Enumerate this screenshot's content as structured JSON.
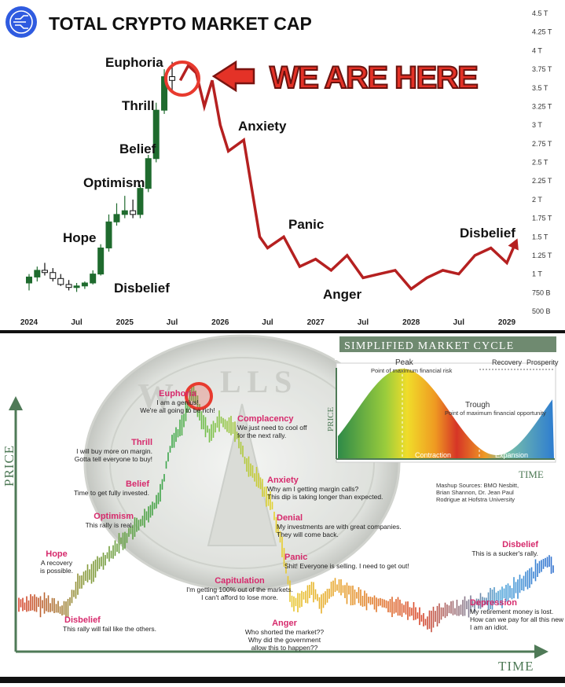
{
  "top_chart": {
    "title": "TOTAL CRYPTO MARKET CAP",
    "banner": "WE ARE HERE",
    "y_ticks": [
      "4.5 T",
      "4.25 T",
      "4 T",
      "3.75 T",
      "3.5 T",
      "3.25 T",
      "3 T",
      "2.75 T",
      "2.5 T",
      "2.25 T",
      "2 T",
      "1.75 T",
      "1.5 T",
      "1.25 T",
      "1 T",
      "750 B",
      "500 B"
    ],
    "x_ticks": [
      "2024",
      "Jul",
      "2025",
      "Jul",
      "2026",
      "Jul",
      "2027",
      "Jul",
      "2028",
      "Jul",
      "2029"
    ],
    "phase_labels": [
      "Euphoria",
      "Thrill",
      "Belief",
      "Optimism",
      "Hope",
      "Disbelief",
      "Anxiety",
      "Panic",
      "Anger",
      "Disbelief"
    ],
    "colors": {
      "projection": "#b52020",
      "highlight": "#e83a2e",
      "candle_up": "#1f6b2e",
      "candle_down": "#111111",
      "logo": "#2f5be0"
    }
  },
  "chart_data": [
    {
      "type": "line",
      "title": "TOTAL CRYPTO MARKET CAP",
      "xlabel": "",
      "ylabel": "",
      "ylim": [
        500000000000,
        4500000000000
      ],
      "x": [
        "2025-08",
        "2025-09",
        "2025-10",
        "2025-11",
        "2025-12",
        "2026-01",
        "2026-02",
        "2026-04",
        "2026-06",
        "2026-07",
        "2026-09",
        "2026-11",
        "2027-01",
        "2027-03",
        "2027-05",
        "2027-07",
        "2027-09",
        "2027-11",
        "2028-01",
        "2028-03",
        "2028-05",
        "2028-07",
        "2028-09",
        "2028-11",
        "2029-01",
        "2029-02"
      ],
      "series": [
        {
          "values": [
            3600000000000,
            3800000000000,
            3700000000000,
            3250000000000,
            3600000000000,
            3000000000000,
            2650000000000,
            2800000000000,
            1500000000000,
            1350000000000,
            1500000000000,
            1100000000000,
            1200000000000,
            1050000000000,
            1250000000000,
            950000000000,
            1000000000000,
            1050000000000,
            800000000000,
            950000000000,
            1050000000000,
            1000000000000,
            1250000000000,
            1350000000000,
            1150000000000,
            1400000000000
          ]
        }
      ],
      "candles": [
        {
          "x": "2024-01",
          "o": 880000000000,
          "h": 1000000000000,
          "l": 780000000000,
          "c": 960000000000
        },
        {
          "x": "2024-02",
          "o": 960000000000,
          "h": 1100000000000,
          "l": 900000000000,
          "c": 1050000000000
        },
        {
          "x": "2024-03",
          "o": 1050000000000,
          "h": 1150000000000,
          "l": 980000000000,
          "c": 1020000000000
        },
        {
          "x": "2024-04",
          "o": 1020000000000,
          "h": 1080000000000,
          "l": 900000000000,
          "c": 940000000000
        },
        {
          "x": "2024-05",
          "o": 940000000000,
          "h": 1000000000000,
          "l": 840000000000,
          "c": 860000000000
        },
        {
          "x": "2024-06",
          "o": 860000000000,
          "h": 920000000000,
          "l": 780000000000,
          "c": 820000000000
        },
        {
          "x": "2024-07",
          "o": 820000000000,
          "h": 880000000000,
          "l": 760000000000,
          "c": 840000000000
        },
        {
          "x": "2024-08",
          "o": 840000000000,
          "h": 900000000000,
          "l": 800000000000,
          "c": 880000000000
        },
        {
          "x": "2024-09",
          "o": 880000000000,
          "h": 1050000000000,
          "l": 860000000000,
          "c": 1000000000000
        },
        {
          "x": "2024-10",
          "o": 1000000000000,
          "h": 1400000000000,
          "l": 980000000000,
          "c": 1350000000000
        },
        {
          "x": "2024-11",
          "o": 1350000000000,
          "h": 1800000000000,
          "l": 1300000000000,
          "c": 1700000000000
        },
        {
          "x": "2024-12",
          "o": 1700000000000,
          "h": 1950000000000,
          "l": 1650000000000,
          "c": 1800000000000
        },
        {
          "x": "2025-01",
          "o": 1800000000000,
          "h": 2050000000000,
          "l": 1750000000000,
          "c": 1850000000000
        },
        {
          "x": "2025-02",
          "o": 1850000000000,
          "h": 2000000000000,
          "l": 1750000000000,
          "c": 1800000000000
        },
        {
          "x": "2025-03",
          "o": 1800000000000,
          "h": 2200000000000,
          "l": 1750000000000,
          "c": 2150000000000
        },
        {
          "x": "2025-04",
          "o": 2150000000000,
          "h": 2600000000000,
          "l": 2100000000000,
          "c": 2550000000000
        },
        {
          "x": "2025-05",
          "o": 2550000000000,
          "h": 3300000000000,
          "l": 2500000000000,
          "c": 3200000000000
        },
        {
          "x": "2025-06",
          "o": 3200000000000,
          "h": 3750000000000,
          "l": 3150000000000,
          "c": 3650000000000
        },
        {
          "x": "2025-07",
          "o": 3650000000000,
          "h": 3850000000000,
          "l": 3450000000000,
          "c": 3600000000000
        }
      ]
    },
    {
      "type": "area",
      "title": "SIMPLIFIED MARKET CYCLE",
      "xlabel": "TIME",
      "ylabel": "PRICE",
      "annotations": {
        "peak": "Peak",
        "peak_note": "Point of maximum financial risk",
        "trough": "Trough",
        "trough_note": "Point of maximum financial opportunity",
        "phases": [
          "Contraction",
          "Expansion",
          "Recovery",
          "Prosperity"
        ]
      }
    }
  ],
  "bottom_chart": {
    "ylabel": "PRICE",
    "xlabel": "TIME",
    "watermark_left": "W",
    "watermark_right": "L L  S",
    "phases": [
      {
        "title": "Euphoria",
        "note": [
          "I am a genius!",
          "We're all going to be rich!"
        ]
      },
      {
        "title": "Thrill",
        "note": [
          "I will buy more on margin.",
          "Gotta tell everyone to buy!"
        ]
      },
      {
        "title": "Belief",
        "note": [
          "Time to get fully invested."
        ]
      },
      {
        "title": "Optimism",
        "note": [
          "This rally is real."
        ]
      },
      {
        "title": "Hope",
        "note": [
          "A recovery",
          "is possible."
        ]
      },
      {
        "title": "Disbelief",
        "note": [
          "This rally will fail like the others."
        ]
      },
      {
        "title": "Complacency",
        "note": [
          "We just need to cool off",
          "for the next rally."
        ]
      },
      {
        "title": "Anxiety",
        "note": [
          "Why am I getting margin calls?",
          "This dip is taking longer than expected."
        ]
      },
      {
        "title": "Denial",
        "note": [
          "My investments are with great companies.",
          "They will come back."
        ]
      },
      {
        "title": "Panic",
        "note": [
          "Shit! Everyone is selling. I need to get out!"
        ]
      },
      {
        "title": "Capitulation",
        "note": [
          "I'm getting 100% out of the markets.",
          "I can't afford to lose more."
        ]
      },
      {
        "title": "Anger",
        "note": [
          "Who shorted the market??",
          "Why did the government",
          "allow this to happen??"
        ]
      },
      {
        "title": "Depression",
        "note": [
          "My retirement money is lost.",
          "How can we pay for all this new stuff?",
          "I am an idiot."
        ]
      },
      {
        "title": "Disbelief",
        "note": [
          "This is a sucker's rally."
        ]
      }
    ],
    "sources": [
      "Mashup Sources: BMO Nesbitt,",
      "Brian Shannon, Dr. Jean Paul",
      "Rodrigue at Hofstra University"
    ],
    "colors": {
      "title_bar": "#6f8a70",
      "arrow": "#4f7a57",
      "phase_title": "#d62a6c"
    }
  }
}
